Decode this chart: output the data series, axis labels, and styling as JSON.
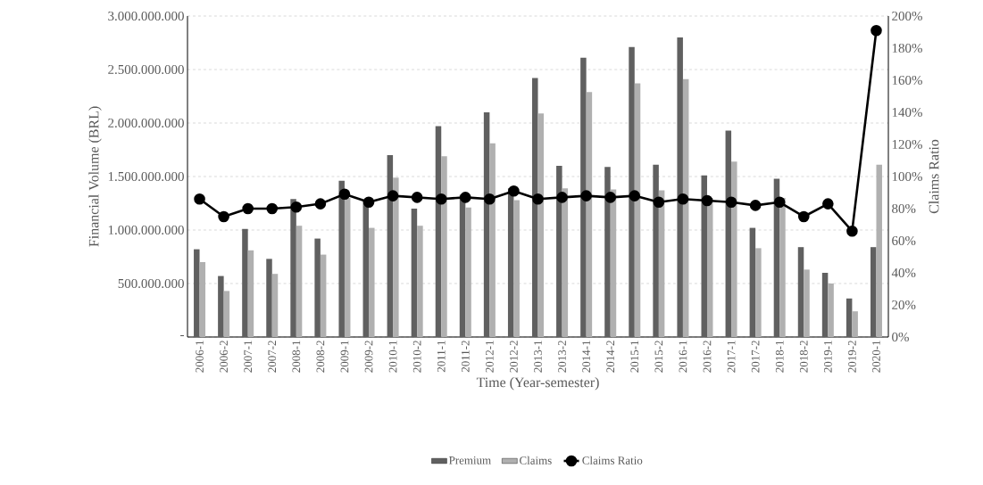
{
  "chart_data": {
    "type": "bar",
    "xlabel": "Time (Year-semester)",
    "ylabel": "Financial Volume (BRL)",
    "y2label": "Claims Ratio",
    "categories": [
      "2006-1",
      "2006-2",
      "2007-1",
      "2007-2",
      "2008-1",
      "2008-2",
      "2009-1",
      "2009-2",
      "2010-1",
      "2010-2",
      "2011-1",
      "2011-2",
      "2012-1",
      "2012-2",
      "2013-1",
      "2013-2",
      "2014-1",
      "2014-2",
      "2015-1",
      "2015-2",
      "2016-1",
      "2016-2",
      "2017-1",
      "2017-2",
      "2018-1",
      "2018-2",
      "2019-1",
      "2019-2",
      "2020-1"
    ],
    "series": [
      {
        "name": "Premium",
        "color": "#606060",
        "values": [
          820000000,
          570000000,
          1010000000,
          730000000,
          1290000000,
          920000000,
          1460000000,
          1270000000,
          1700000000,
          1200000000,
          1970000000,
          1330000000,
          2100000000,
          1390000000,
          2420000000,
          1600000000,
          2610000000,
          1590000000,
          2710000000,
          1610000000,
          2800000000,
          1510000000,
          1930000000,
          1020000000,
          1480000000,
          840000000,
          600000000,
          360000000,
          840000000
        ]
      },
      {
        "name": "Claims",
        "color": "#b0b0b0",
        "values": [
          700000000,
          430000000,
          810000000,
          590000000,
          1040000000,
          770000000,
          1300000000,
          1020000000,
          1490000000,
          1040000000,
          1690000000,
          1210000000,
          1810000000,
          1280000000,
          2090000000,
          1390000000,
          2290000000,
          1380000000,
          2370000000,
          1370000000,
          2410000000,
          1300000000,
          1640000000,
          830000000,
          1300000000,
          630000000,
          500000000,
          240000000,
          1610000000
        ]
      },
      {
        "name": "Claims Ratio",
        "type": "line",
        "axis": "y2",
        "color": "#000000",
        "marker": "circle",
        "line_style": "solid",
        "values": [
          86,
          75,
          80,
          80,
          81,
          83,
          89,
          84,
          88,
          87,
          86,
          87,
          86,
          91,
          86,
          87,
          88,
          87,
          88,
          84,
          86,
          85,
          84,
          82,
          84,
          75,
          83,
          66,
          191
        ]
      }
    ],
    "ylim": [
      0,
      3000000000
    ],
    "yticks": [
      {
        "value": 0,
        "label": "-"
      },
      {
        "value": 500000000,
        "label": "500.000.000"
      },
      {
        "value": 1000000000,
        "label": "1.000.000.000"
      },
      {
        "value": 1500000000,
        "label": "1.500.000.000"
      },
      {
        "value": 2000000000,
        "label": "2.000.000.000"
      },
      {
        "value": 2500000000,
        "label": "2.500.000.000"
      },
      {
        "value": 3000000000,
        "label": "3.000.000.000"
      }
    ],
    "y2lim": [
      0,
      200
    ],
    "y2ticks": [
      {
        "value": 0,
        "label": "0%"
      },
      {
        "value": 20,
        "label": "20%"
      },
      {
        "value": 40,
        "label": "40%"
      },
      {
        "value": 60,
        "label": "60%"
      },
      {
        "value": 80,
        "label": "80%"
      },
      {
        "value": 100,
        "label": "100%"
      },
      {
        "value": 120,
        "label": "120%"
      },
      {
        "value": 140,
        "label": "140%"
      },
      {
        "value": 160,
        "label": "160%"
      },
      {
        "value": 180,
        "label": "180%"
      },
      {
        "value": 200,
        "label": "200%"
      }
    ],
    "grid": "y",
    "legend": "bottom"
  }
}
